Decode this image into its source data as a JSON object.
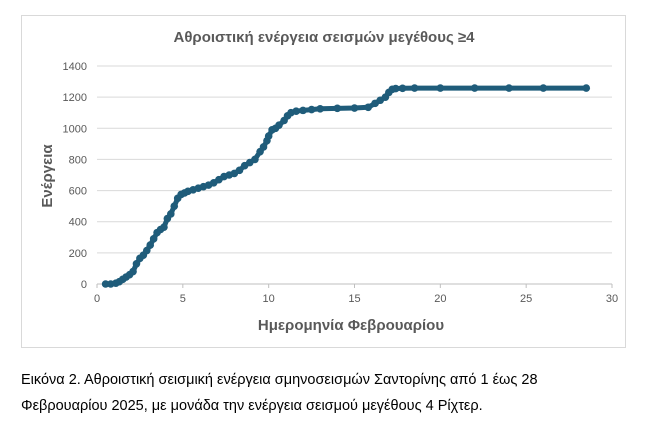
{
  "chart_data": {
    "type": "line",
    "title": "Αθροιστική ενέργεια σεισμών μεγέθους ≥4",
    "xlabel": "Ημερομηνία Φεβρουαρίου",
    "ylabel": "Ενέργεια",
    "xlim": [
      0,
      30
    ],
    "ylim": [
      0,
      1400
    ],
    "xticks": [
      0,
      5,
      10,
      15,
      20,
      25,
      30
    ],
    "yticks": [
      0,
      200,
      400,
      600,
      800,
      1000,
      1200,
      1400
    ],
    "grid": "horizontal",
    "legend": "none",
    "series_color": "#1f5c7a",
    "series": [
      {
        "x": [
          0.5,
          0.8,
          1.1,
          1.3,
          1.5,
          1.7,
          1.9,
          2.1,
          2.3,
          2.5,
          2.7,
          2.9,
          3.1,
          3.3,
          3.5,
          3.7,
          3.9,
          4.1,
          4.3,
          4.5,
          4.7,
          4.9,
          5.1,
          5.3,
          5.6,
          5.9,
          6.2,
          6.5,
          6.8,
          7.1,
          7.4,
          7.7,
          8.0,
          8.3,
          8.6,
          8.9,
          9.2,
          9.5,
          9.7,
          9.9,
          10.0,
          10.2,
          10.4,
          10.6,
          10.9,
          11.1,
          11.3,
          11.6,
          12.0,
          12.5,
          13.0,
          14.0,
          15.0,
          15.8,
          16.2,
          16.5,
          16.8,
          17.0,
          17.2,
          17.4,
          17.8,
          18.5,
          20.0,
          22.0,
          24.0,
          26.0,
          28.5
        ],
        "y": [
          0,
          0,
          5,
          15,
          30,
          45,
          60,
          80,
          130,
          165,
          185,
          215,
          250,
          290,
          330,
          350,
          365,
          420,
          450,
          500,
          550,
          575,
          585,
          595,
          605,
          615,
          625,
          635,
          650,
          670,
          690,
          700,
          710,
          730,
          760,
          780,
          800,
          850,
          880,
          920,
          950,
          990,
          1000,
          1020,
          1050,
          1080,
          1100,
          1110,
          1115,
          1120,
          1125,
          1128,
          1130,
          1135,
          1160,
          1180,
          1200,
          1230,
          1250,
          1255,
          1257,
          1258,
          1258,
          1258,
          1258,
          1258,
          1258
        ]
      }
    ]
  },
  "caption": {
    "line1": "Εικόνα 2. Αθροιστική σεισμική ενέργεια σμηνοσεισμών Σαντορίνης από 1 έως 28",
    "line2": "Φεβρουαρίου 2025, με μονάδα την ενέργεια σεισμού μεγέθους 4 Ρίχτερ."
  }
}
